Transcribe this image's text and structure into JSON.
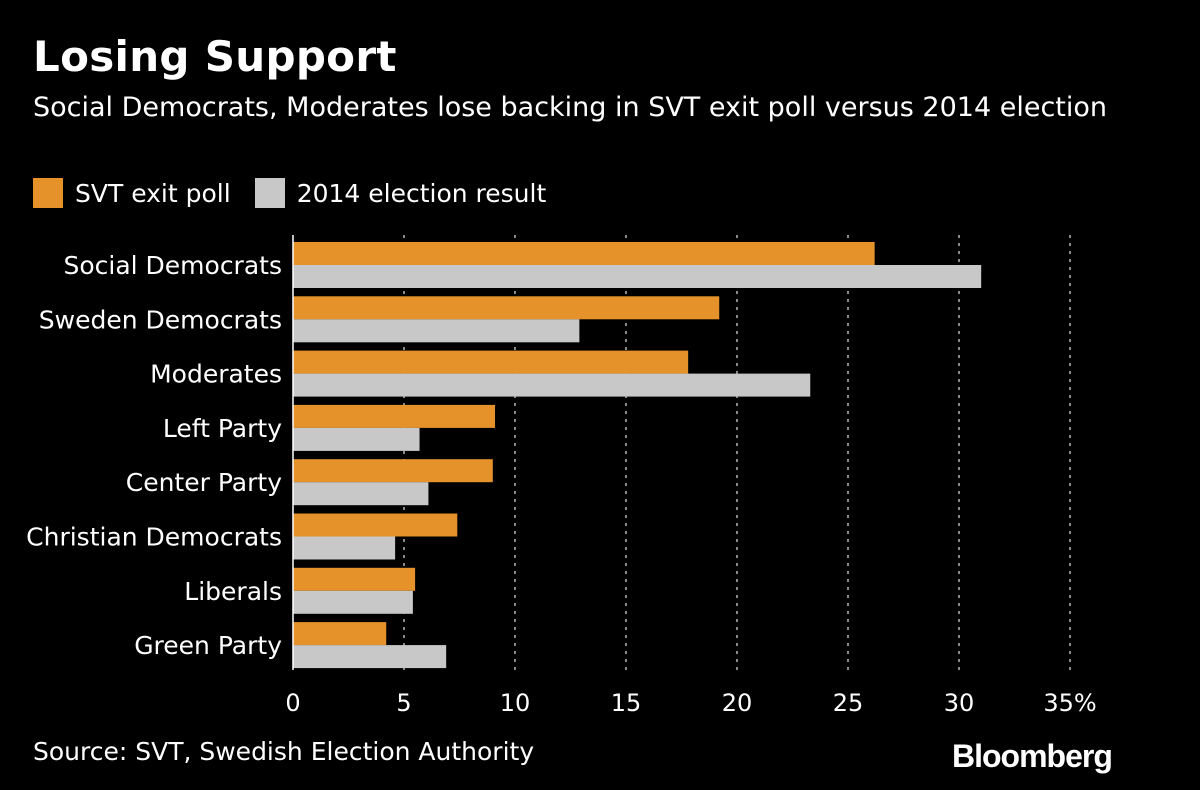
{
  "title": "Losing Support",
  "subtitle": "Social Democrats, Moderates lose backing in SVT exit poll versus 2014 election",
  "source": "Source: SVT, Swedish Election Authority",
  "logo": "Bloomberg",
  "colors": {
    "background": "#000000",
    "series_exit_poll": "#E5922A",
    "series_2014": "#C8C8C8",
    "gridline": "#8A8A8A",
    "text": "#FFFFFF"
  },
  "chart_data": {
    "type": "bar",
    "orientation": "horizontal",
    "categories": [
      "Social Democrats",
      "Sweden Democrats",
      "Moderates",
      "Left Party",
      "Center Party",
      "Christian Democrats",
      "Liberals",
      "Green Party"
    ],
    "series": [
      {
        "name": "SVT exit poll",
        "values": [
          26.2,
          19.2,
          17.8,
          9.1,
          9.0,
          7.4,
          5.5,
          4.2
        ]
      },
      {
        "name": "2014 election result",
        "values": [
          31.0,
          12.9,
          23.3,
          5.7,
          6.1,
          4.6,
          5.4,
          6.9
        ]
      }
    ],
    "xlim": [
      0,
      35
    ],
    "xticks": [
      "0",
      "5",
      "10",
      "15",
      "20",
      "25",
      "30",
      "35%"
    ],
    "grid": true,
    "legend_position": "top-left"
  }
}
